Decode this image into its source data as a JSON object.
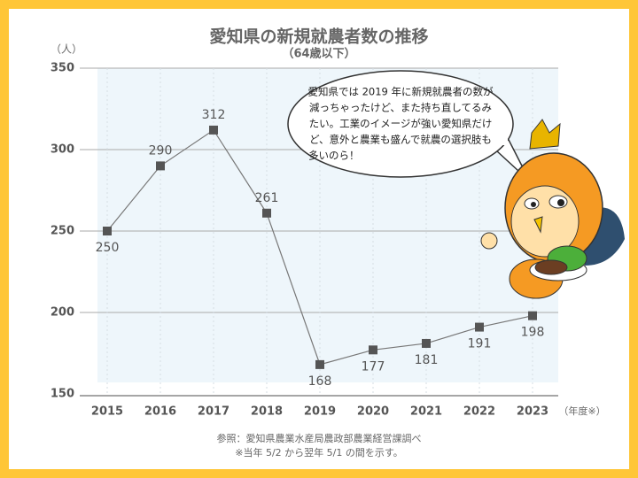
{
  "chart_data": {
    "type": "line",
    "title": "愛知県の新規就農者数の推移",
    "subtitle": "（64歳以下）",
    "y_axis_label": "（人）",
    "x_axis_label": "（年度※）",
    "categories": [
      "2015",
      "2016",
      "2017",
      "2018",
      "2019",
      "2020",
      "2021",
      "2022",
      "2023"
    ],
    "series": [
      {
        "name": "新規就農者数",
        "color": "#555555",
        "values": [
          250,
          290,
          312,
          261,
          168,
          177,
          181,
          191,
          198
        ]
      }
    ],
    "ylim": [
      150,
      350
    ],
    "yticks": [
      150,
      200,
      250,
      300,
      350
    ],
    "grid": true,
    "annotation": [
      "愛知県では 2019 年に新規就農者の数が",
      "減っちゃったけど、また持ち直してるみ",
      "たい。工業のイメージが強い愛知県だけ",
      "ど、意外と農業も盛んで就農の選択肢も",
      "多いのら！"
    ],
    "notes": [
      "参照：愛知県農業水産局農政部農業経営課調べ",
      "※当年 5/2 から翌年 5/1 の間を示す。"
    ]
  }
}
